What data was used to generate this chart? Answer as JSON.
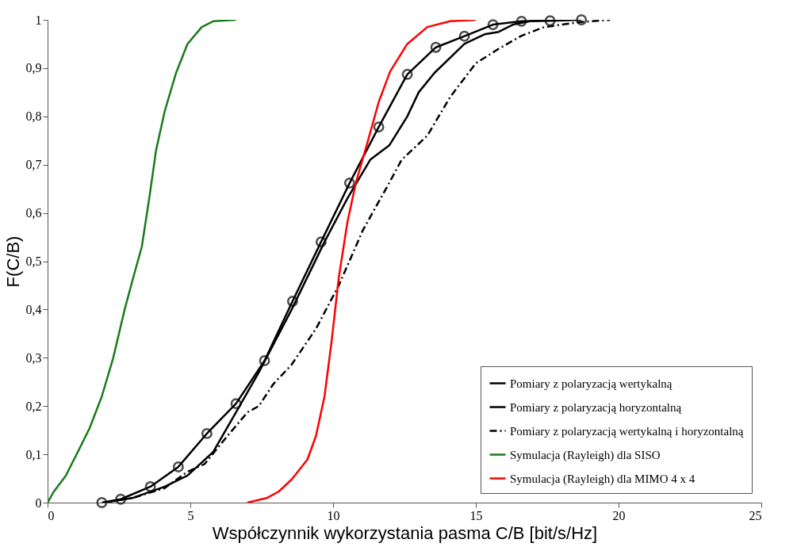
{
  "chart_data": {
    "type": "line",
    "xlabel": "Współczynnik wykorzystania pasma C/B [bit/s/Hz]",
    "ylabel": "F(C/B)",
    "xlim": [
      0,
      25
    ],
    "xticks": [
      0,
      5,
      10,
      15,
      20,
      25
    ],
    "ylim": [
      0,
      1
    ],
    "yticks": [
      0,
      {
        "value": 0.1,
        "label": "0,1"
      },
      {
        "value": 0.2,
        "label": "0,2"
      },
      {
        "value": 0.3,
        "label": "0,3"
      },
      {
        "value": 0.4,
        "label": "0,4"
      },
      {
        "value": 0.5,
        "label": "0,5"
      },
      {
        "value": 0.6,
        "label": "0,6"
      },
      {
        "value": 0.7,
        "label": "0,7"
      },
      {
        "value": 0.8,
        "label": "0,8"
      },
      {
        "value": 0.9,
        "label": "0,9"
      },
      1
    ],
    "grid": false,
    "legend": "bottom right",
    "series": [
      {
        "name": "Pomiary z polaryzacją wertykalną",
        "color": "#000000",
        "marker": "circle",
        "line_style": "solid",
        "x": [
          1.9,
          2.56,
          3.6,
          4.58,
          5.58,
          6.6,
          7.6,
          8.58,
          9.58,
          10.58,
          11.6,
          12.6,
          13.6,
          14.6,
          15.6,
          16.6,
          17.6,
          18.7
        ],
        "values": [
          0,
          0.007,
          0.033,
          0.074,
          0.143,
          0.205,
          0.294,
          0.417,
          0.54,
          0.662,
          0.778,
          0.887,
          0.943,
          0.966,
          0.99,
          0.997,
          0.998,
          1.0
        ]
      },
      {
        "name": "Pomiary z polaryzacją horyzontalną",
        "color": "#000000",
        "line_style": "solid",
        "x": [
          2.0,
          3.0,
          4.1,
          4.9,
          5.8,
          6.6,
          7.4,
          8.55,
          9.7,
          10.5,
          11.3,
          11.97,
          12.6,
          13.0,
          13.55,
          14.6,
          15.3,
          15.8,
          16.3,
          16.9,
          17.7
        ],
        "values": [
          0,
          0.01,
          0.033,
          0.056,
          0.105,
          0.187,
          0.27,
          0.4,
          0.54,
          0.63,
          0.71,
          0.74,
          0.8,
          0.85,
          0.89,
          0.95,
          0.97,
          0.975,
          0.99,
          0.997,
          1.0
        ]
      },
      {
        "name": "Pomiary z polaryzacją wertykalną i horyzontalną",
        "color": "#000000",
        "line_style": "dashdot",
        "x": [
          2.0,
          3.0,
          4.1,
          4.9,
          5.5,
          6.3,
          7.0,
          7.4,
          7.9,
          8.55,
          9.4,
          10.2,
          11.05,
          11.9,
          12.4,
          13.3,
          14.1,
          15.0,
          15.8,
          16.6,
          17.4,
          18.6,
          19.7
        ],
        "values": [
          0,
          0.01,
          0.03,
          0.064,
          0.08,
          0.138,
          0.187,
          0.2,
          0.245,
          0.286,
          0.36,
          0.45,
          0.565,
          0.655,
          0.71,
          0.76,
          0.84,
          0.91,
          0.94,
          0.967,
          0.985,
          0.995,
          1.0
        ]
      },
      {
        "name": "Symulacja (Rayleigh) dla SISO",
        "color": "#1a7a1a",
        "line_style": "solid",
        "x": [
          0,
          0.22,
          0.64,
          1.06,
          1.47,
          1.9,
          2.3,
          2.7,
          3.0,
          3.3,
          3.56,
          3.8,
          4.1,
          4.5,
          4.9,
          5.4,
          5.8,
          6.6
        ],
        "values": [
          0,
          0.023,
          0.056,
          0.105,
          0.154,
          0.22,
          0.3,
          0.4,
          0.466,
          0.53,
          0.63,
          0.73,
          0.81,
          0.89,
          0.95,
          0.985,
          0.997,
          1.0
        ]
      },
      {
        "name": "Symulacja (Rayleigh) dla MIMO 4 x 4",
        "color": "#ff0000",
        "line_style": "solid",
        "x": [
          7.0,
          7.7,
          8.1,
          8.55,
          9.1,
          9.4,
          9.7,
          9.95,
          10.2,
          10.5,
          10.8,
          11.2,
          11.6,
          12.0,
          12.6,
          13.3,
          14.1,
          15.0
        ],
        "values": [
          0,
          0.01,
          0.023,
          0.048,
          0.089,
          0.138,
          0.22,
          0.335,
          0.466,
          0.58,
          0.663,
          0.745,
          0.83,
          0.893,
          0.95,
          0.985,
          0.997,
          1.0
        ]
      }
    ]
  }
}
